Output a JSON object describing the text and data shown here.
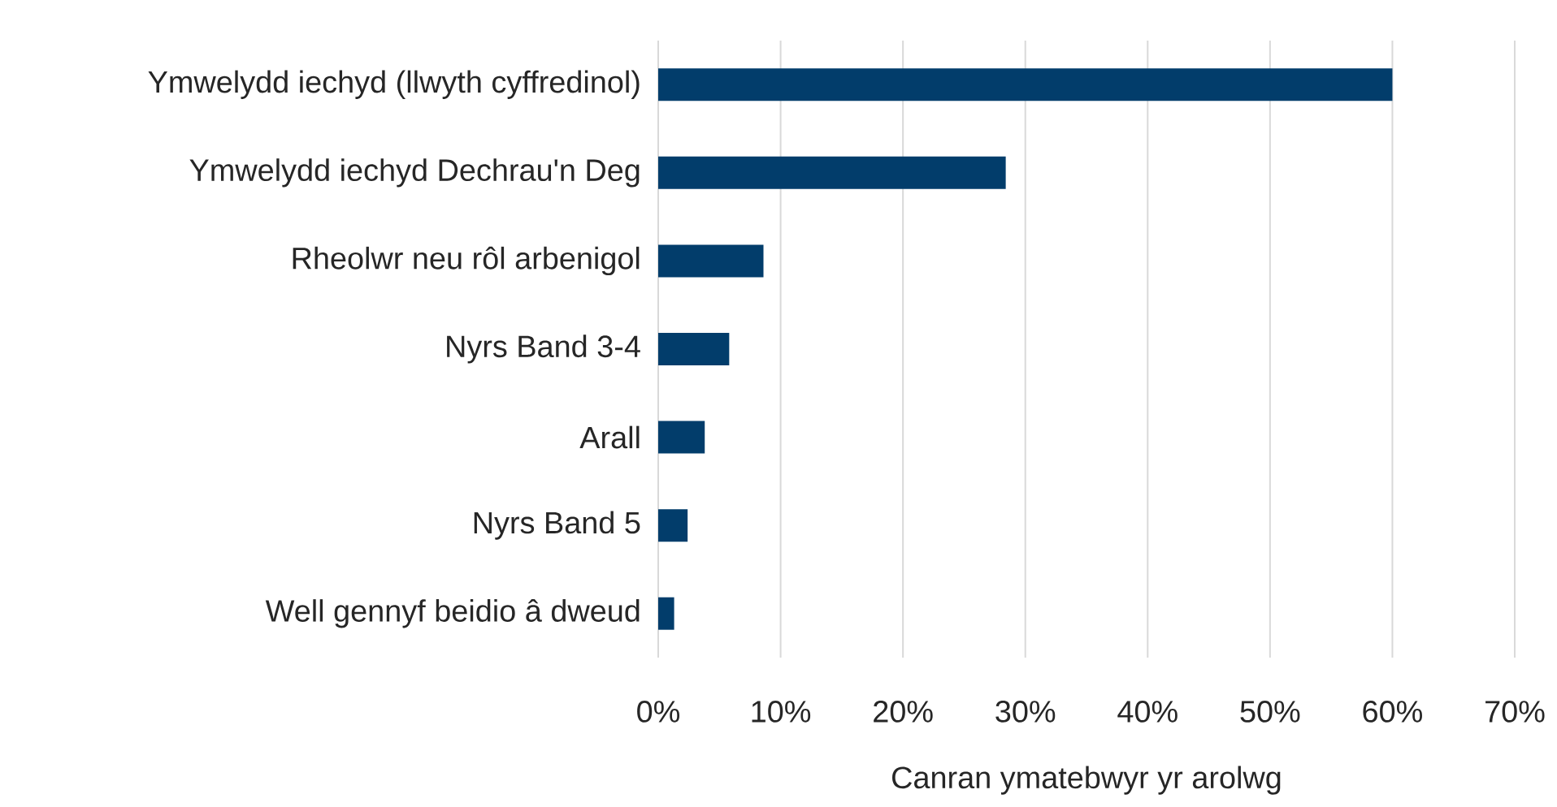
{
  "chart_data": {
    "type": "bar",
    "orientation": "horizontal",
    "categories": [
      "Ymwelydd iechyd (llwyth cyffredinol)",
      "Ymwelydd iechyd Dechrau'n Deg",
      "Rheolwr neu rôl arbenigol",
      "Nyrs Band 3-4",
      "Arall",
      "Nyrs Band 5",
      "Well gennyf beidio â dweud"
    ],
    "values": [
      60.0,
      28.4,
      8.6,
      5.8,
      3.8,
      2.4,
      1.3
    ],
    "color": "#023d6b",
    "xlabel": "Canran ymatebwyr yr arolwg",
    "xlim": [
      0,
      70
    ],
    "xticks": [
      {
        "value": 0,
        "label": "0%"
      },
      {
        "value": 10,
        "label": "10%"
      },
      {
        "value": 20,
        "label": "20%"
      },
      {
        "value": 30,
        "label": "30%"
      },
      {
        "value": 40,
        "label": "40%"
      },
      {
        "value": 50,
        "label": "50%"
      },
      {
        "value": 60,
        "label": "60%"
      },
      {
        "value": 70,
        "label": "70%"
      }
    ],
    "grid": "x"
  }
}
